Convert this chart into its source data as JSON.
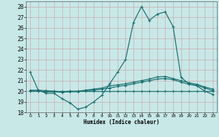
{
  "bg_color": "#c8e8e8",
  "grid_color": "#aacccc",
  "line_color": "#1a6e6e",
  "xlabel": "Humidex (Indice chaleur)",
  "xlim": [
    -0.5,
    23.5
  ],
  "ylim": [
    18,
    28.5
  ],
  "yticks": [
    18,
    19,
    20,
    21,
    22,
    23,
    24,
    25,
    26,
    27,
    28
  ],
  "xticks": [
    0,
    1,
    2,
    3,
    4,
    5,
    6,
    7,
    8,
    9,
    10,
    11,
    12,
    13,
    14,
    15,
    16,
    17,
    18,
    19,
    20,
    21,
    22,
    23
  ],
  "series": [
    [
      21.8,
      20.1,
      19.8,
      19.8,
      19.3,
      18.9,
      18.3,
      18.5,
      19.0,
      19.6,
      20.7,
      21.8,
      23.0,
      26.5,
      28.0,
      26.7,
      27.3,
      27.5,
      26.1,
      21.3,
      20.7,
      20.5,
      20.0,
      19.7
    ],
    [
      20.1,
      20.1,
      20.05,
      20.0,
      19.95,
      20.0,
      20.0,
      20.1,
      20.2,
      20.3,
      20.5,
      20.6,
      20.7,
      20.85,
      21.0,
      21.15,
      21.35,
      21.4,
      21.2,
      21.0,
      20.8,
      20.65,
      20.4,
      20.2
    ],
    [
      20.0,
      20.0,
      19.95,
      19.95,
      19.9,
      19.95,
      19.95,
      20.05,
      20.1,
      20.2,
      20.3,
      20.45,
      20.55,
      20.7,
      20.85,
      21.0,
      21.15,
      21.2,
      21.1,
      20.85,
      20.65,
      20.55,
      20.3,
      20.05
    ],
    [
      20.0,
      20.0,
      20.0,
      20.0,
      20.0,
      20.0,
      20.0,
      20.0,
      20.0,
      20.0,
      20.0,
      20.0,
      20.0,
      20.0,
      20.0,
      20.0,
      20.0,
      20.0,
      20.0,
      20.0,
      20.0,
      20.0,
      20.0,
      20.0
    ]
  ]
}
